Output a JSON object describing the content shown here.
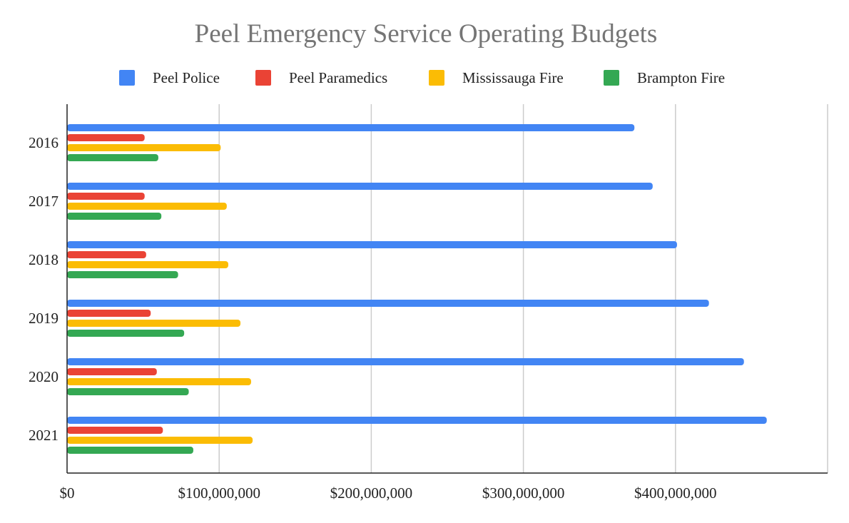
{
  "chart_data": {
    "type": "bar",
    "orientation": "horizontal",
    "title": "Peel Emergency Service Operating Budgets",
    "xlabel": "",
    "ylabel": "",
    "categories": [
      "2016",
      "2017",
      "2018",
      "2019",
      "2020",
      "2021"
    ],
    "series": [
      {
        "name": "Peel Police",
        "color": "#4285F4",
        "values": [
          373000000,
          385000000,
          401000000,
          422000000,
          445000000,
          460000000
        ]
      },
      {
        "name": "Peel Paramedics",
        "color": "#EA4335",
        "values": [
          51000000,
          51000000,
          52000000,
          55000000,
          59000000,
          63000000
        ]
      },
      {
        "name": "Mississauga Fire",
        "color": "#FBBC04",
        "values": [
          101000000,
          105000000,
          106000000,
          114000000,
          121000000,
          122000000
        ]
      },
      {
        "name": "Brampton Fire",
        "color": "#34A853",
        "values": [
          60000000,
          62000000,
          73000000,
          77000000,
          80000000,
          83000000
        ]
      }
    ],
    "xlim": [
      0,
      500000000
    ],
    "xticks": [
      0,
      100000000,
      200000000,
      300000000,
      400000000
    ],
    "xtick_labels": [
      "$0",
      "$100,000,000",
      "$200,000,000",
      "$300,000,000",
      "$400,000,000"
    ],
    "grid": true,
    "legend_position": "top"
  }
}
